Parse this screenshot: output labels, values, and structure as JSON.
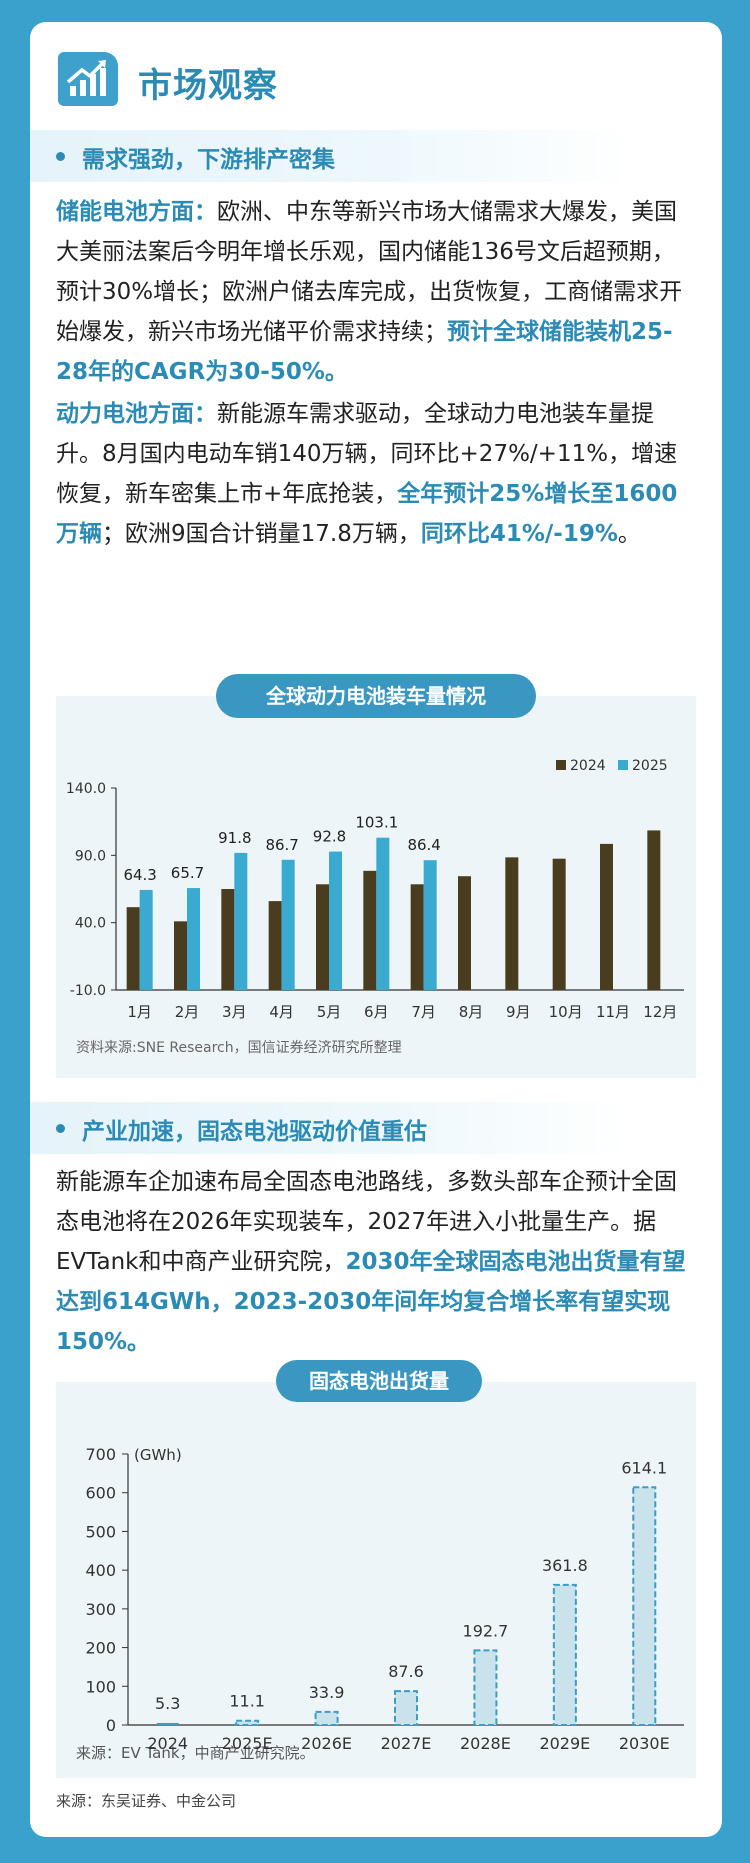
{
  "header": {
    "title": "市场观察",
    "icon": "growth-chart-icon"
  },
  "section1": {
    "heading": "需求强劲，下游排产密集",
    "p1": {
      "lead": "储能电池方面：",
      "text1": "欧洲、中东等新兴市场大储需求大爆发，美国大美丽法案后今明年增长乐观，国内储能136号文后超预期，预计30%增长；欧洲户储去库完成，出货恢复，工商储需求开始爆发，新兴市场光储平价需求持续；",
      "hl1": "预计全球储能装机25-28年的CAGR为30-50%。"
    },
    "p2": {
      "lead": "动力电池方面：",
      "text1": "新能源车需求驱动，全球动力电池装车量提升。8月国内电动车销140万辆，同环比+27%/+11%，增速恢复，新车密集上市+年底抢装，",
      "hl1": "全年预计25%增长至1600万辆",
      "text2": "；欧洲9国合计销量17.8万辆，",
      "hl2": "同环比41%/-19%",
      "text3": "。"
    }
  },
  "chart1": {
    "title": "全球动力电池装车量情况",
    "source": "资料来源:SNE Research，国信证券经济研究所整理"
  },
  "section2": {
    "heading": "产业加速，固态电池驱动价值重估",
    "p1": {
      "text1": "新能源车企加速布局全固态电池路线，多数头部车企预计全固态电池将在2026年实现装车，2027年进入小批量生产。据EVTank和中商产业研究院，",
      "hl1": "2030年全球固态电池出货量有望达到614GWh，2023-2030年间年均复合增长率有望实现150%。"
    }
  },
  "chart2": {
    "title": "固态电池出货量",
    "source": "来源：EV Tank，中商产业研究院。"
  },
  "footer": "来源：东吴证券、中金公司",
  "chart_data": [
    {
      "type": "bar",
      "title": "全球动力电池装车量情况",
      "categories": [
        "1月",
        "2月",
        "3月",
        "4月",
        "5月",
        "6月",
        "7月",
        "8月",
        "9月",
        "10月",
        "11月",
        "12月"
      ],
      "series": [
        {
          "name": "2024",
          "color": "#4a3d1f",
          "values": [
            51.5,
            41.0,
            65.0,
            56.0,
            68.5,
            78.5,
            68.5,
            74.5,
            88.5,
            87.5,
            98.5,
            108.5
          ]
        },
        {
          "name": "2025",
          "color": "#3aaad1",
          "values": [
            64.3,
            65.7,
            91.8,
            86.7,
            92.8,
            103.1,
            86.4,
            null,
            null,
            null,
            null,
            null
          ]
        }
      ],
      "data_labels_series": "2025",
      "yticks": [
        "-10.0",
        "40.0",
        "90.0",
        "140.0"
      ],
      "ylim": [
        -10,
        140
      ],
      "legend": "top-right",
      "grid": false
    },
    {
      "type": "bar",
      "title": "固态电池出货量",
      "unit": "(GWh)",
      "categories": [
        "2024",
        "2025E",
        "2026E",
        "2027E",
        "2028E",
        "2029E",
        "2030E"
      ],
      "values": [
        5.3,
        11.1,
        33.9,
        87.6,
        192.7,
        361.8,
        614.1
      ],
      "labels": [
        "5.3",
        "11.1",
        "33.9",
        "87.6",
        "192.7",
        "361.8",
        "614.1"
      ],
      "forecast_from_index": 1,
      "bar_color": "#c9e2ec",
      "edge_color": "#3b9dc4",
      "yticks": [
        0,
        100,
        200,
        300,
        400,
        500,
        600,
        700
      ],
      "ylim": [
        0,
        700
      ],
      "grid": false
    }
  ]
}
